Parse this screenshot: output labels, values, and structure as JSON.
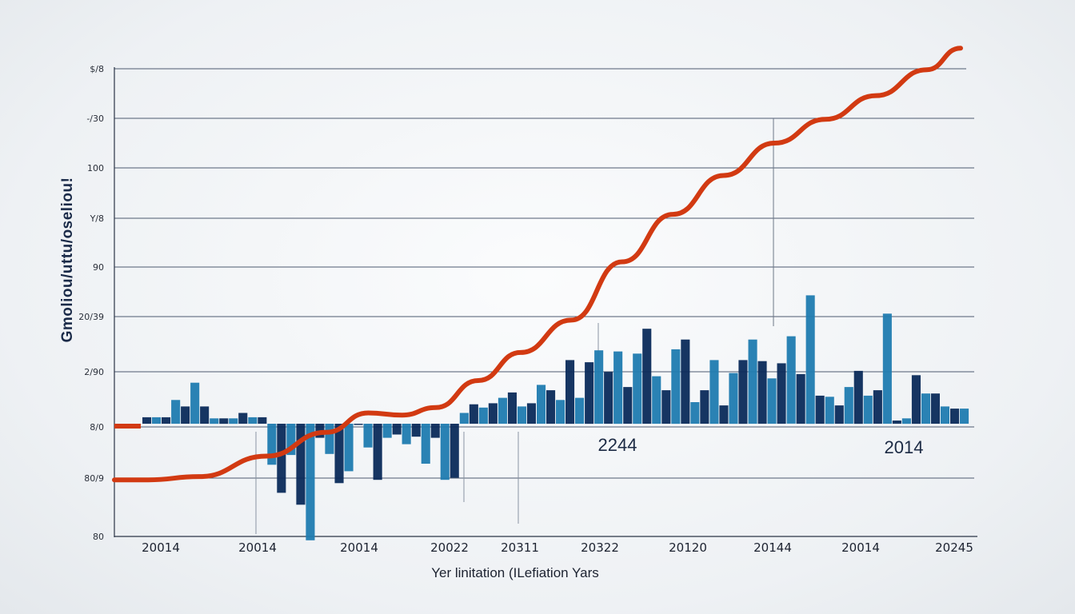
{
  "chart_data": {
    "type": "bar",
    "title": "",
    "xlabel": "Yer linitation (ILefiation Yars",
    "ylabel": "Gmoliou/uttu/oseliou!",
    "y_tick_labels": [
      "$/8",
      "-/30",
      "100",
      "Y/8",
      "90",
      "20/39",
      "2/90",
      "8/0",
      "80/9",
      "80"
    ],
    "x_tick_labels": [
      "20014",
      "20014",
      "20014",
      "20022",
      "20311",
      "20322",
      "20120",
      "20144",
      "20014",
      "20245"
    ],
    "annotations": [
      "2244",
      "2014"
    ],
    "baseline_value": 0,
    "ylim": [
      -10,
      35
    ],
    "series": [
      {
        "name": "bars",
        "colors": [
          "#0a2a5a",
          "#16508a",
          "#1f7bb0",
          "#2aa0d0",
          "#7cc3e4"
        ],
        "values": [
          0.6,
          0.6,
          0.6,
          2.2,
          1.6,
          3.8,
          1.6,
          0.5,
          0.5,
          0.5,
          1.0,
          0.6,
          0.6,
          -3.8,
          -6.4,
          -2.9,
          -7.5,
          -10.8,
          -1.3,
          -2.8,
          -5.5,
          -4.4,
          0.0,
          -2.2,
          -5.2,
          -1.3,
          -1.0,
          -1.9,
          -1.2,
          -3.7,
          -1.3,
          -5.2,
          -5.0,
          1.0,
          1.8,
          1.5,
          1.9,
          2.4,
          2.9,
          1.6,
          1.9,
          3.6,
          3.1,
          2.2,
          5.9,
          2.4,
          5.7,
          6.8,
          4.8,
          6.7,
          3.4,
          6.5,
          8.8,
          4.4,
          3.1,
          6.9,
          7.8,
          2.0,
          3.1,
          5.9,
          1.7,
          4.7,
          5.9,
          7.8,
          5.8,
          4.2,
          5.6,
          8.1,
          4.6,
          11.9,
          2.6,
          2.5,
          1.7,
          3.4,
          4.9,
          2.6,
          3.1,
          10.2,
          0.3,
          0.5,
          4.5,
          2.8,
          2.8,
          1.6,
          1.4,
          1.4
        ]
      },
      {
        "name": "trend",
        "color": "#d23a12",
        "x": [
          0,
          0.04,
          0.1,
          0.18,
          0.25,
          0.3,
          0.34,
          0.38,
          0.43,
          0.48,
          0.54,
          0.6,
          0.66,
          0.72,
          0.78,
          0.84,
          0.9,
          0.96,
          1
        ],
        "values": [
          -5.2,
          -5.2,
          -4.9,
          -3.0,
          -0.8,
          1.0,
          0.8,
          1.5,
          4.0,
          6.6,
          9.6,
          15.0,
          19.4,
          23.0,
          26.0,
          28.2,
          30.4,
          32.8,
          34.8
        ],
        "lead_in_value": 0
      }
    ]
  }
}
